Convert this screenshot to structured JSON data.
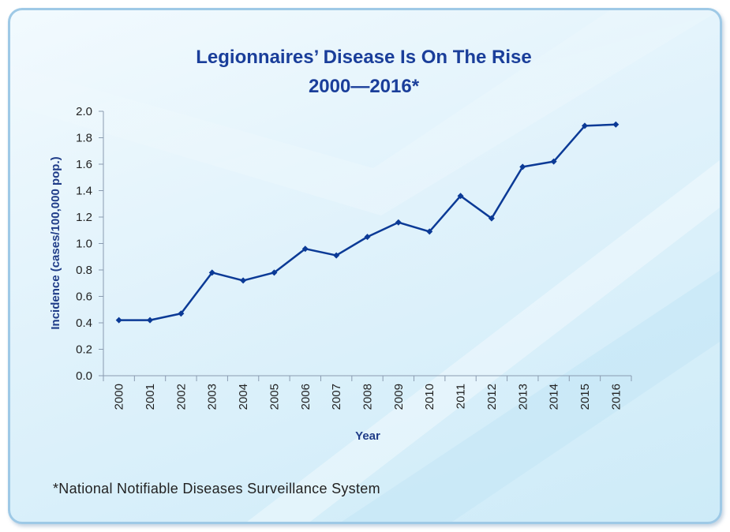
{
  "chart_data": {
    "type": "line",
    "title_line1": "Legionnaires’ Disease Is On The Rise",
    "title_line2": "2000—2016*",
    "xlabel": "Year",
    "ylabel": "Incidence (cases/100,000 pop.)",
    "categories": [
      "2000",
      "2001",
      "2002",
      "2003",
      "2004",
      "2005",
      "2006",
      "2007",
      "2008",
      "2009",
      "2010",
      "2011",
      "2012",
      "2013",
      "2014",
      "2015",
      "2016"
    ],
    "values": [
      0.42,
      0.42,
      0.47,
      0.78,
      0.72,
      0.78,
      0.96,
      0.91,
      1.05,
      1.16,
      1.09,
      1.36,
      1.19,
      1.58,
      1.62,
      1.89,
      1.9
    ],
    "yticks": [
      "0.0",
      "0.2",
      "0.4",
      "0.6",
      "0.8",
      "1.0",
      "1.2",
      "1.4",
      "1.6",
      "1.8",
      "2.0"
    ],
    "ylim": [
      0,
      2.0
    ],
    "grid": false,
    "legend": "none"
  },
  "footnote": "*National Notifiable Diseases Surveillance System",
  "colors": {
    "series": "#0b3a96",
    "title": "#1a3e9a",
    "axis_text": "#1f3c88",
    "axis_line": "#8a9bb0"
  }
}
